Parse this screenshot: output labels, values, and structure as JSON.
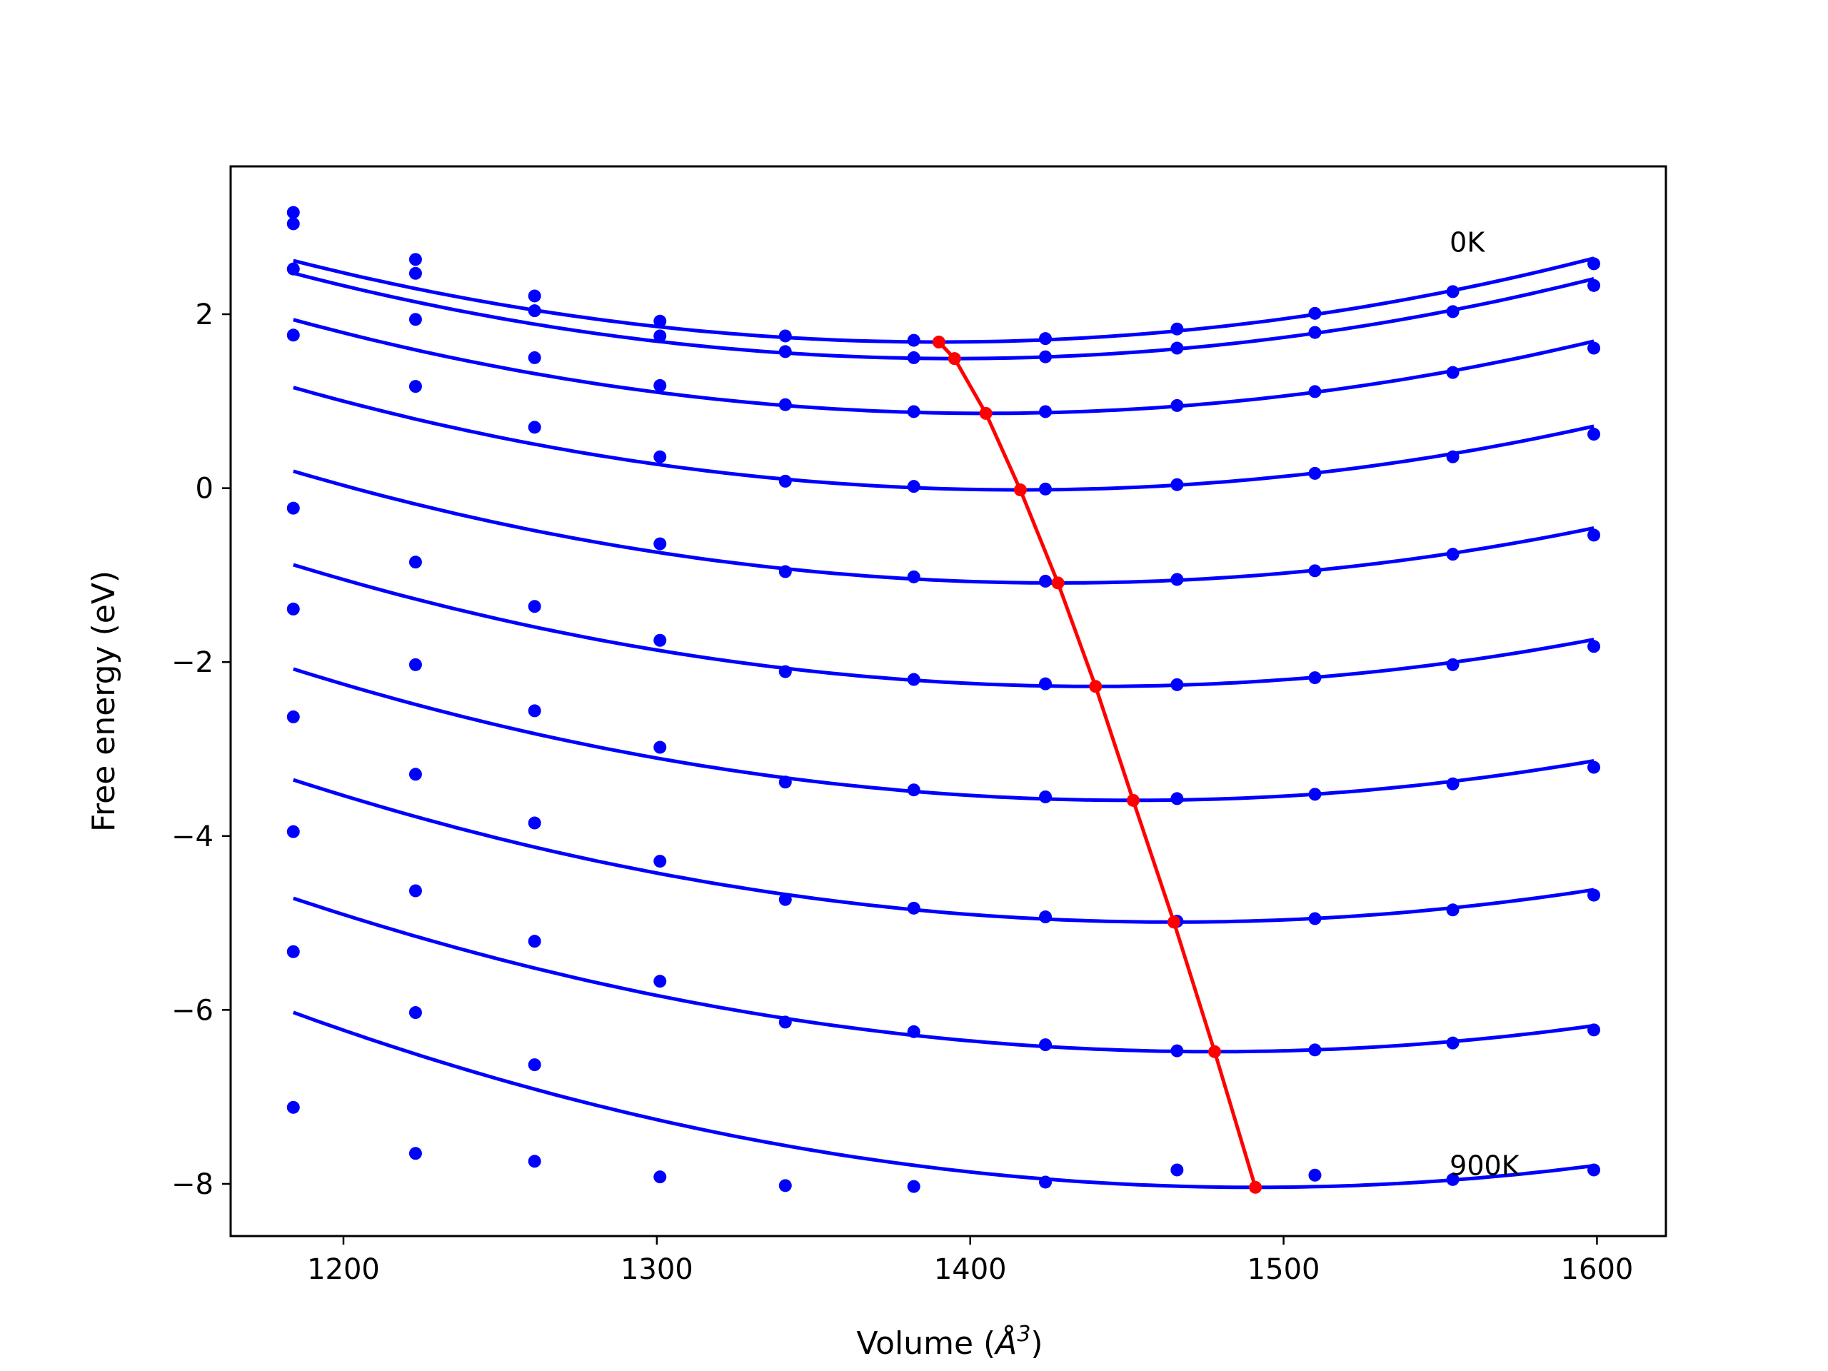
{
  "chart_data": {
    "type": "line",
    "title": "",
    "xlabel": "Volume (",
    "xlabel_sym": "Å",
    "xlabel_sup": "3",
    "xlabel_end": ")",
    "ylabel": "Free energy (eV)",
    "xlim": [
      1164,
      1622
    ],
    "ylim": [
      -8.6,
      3.7
    ],
    "xticks": [
      1200,
      1300,
      1400,
      1500,
      1600
    ],
    "xtick_labels": [
      "1200",
      "1300",
      "1400",
      "1500",
      "1600"
    ],
    "yticks": [
      2,
      0,
      -2,
      -4,
      -6,
      -8
    ],
    "ytick_labels": [
      "2",
      "0",
      "−2",
      "−4",
      "−6",
      "−8"
    ],
    "x": [
      1184,
      1223,
      1261,
      1301,
      1341,
      1382,
      1424,
      1466,
      1510,
      1554,
      1599
    ],
    "colors": {
      "series": "#0000ff",
      "minimum": "#ff0000"
    },
    "series": [
      {
        "values": [
          3.17,
          2.63,
          2.21,
          1.92,
          1.75,
          1.7,
          1.72,
          1.83,
          2.01,
          2.26,
          2.58
        ],
        "fit": {
          "a": 2.205e-05,
          "vmin": 1390,
          "fmin": 1.68
        }
      },
      {
        "values": [
          3.04,
          2.47,
          2.04,
          1.75,
          1.57,
          1.5,
          1.51,
          1.61,
          1.79,
          2.03,
          2.33
        ],
        "fit": {
          "a": 2.205e-05,
          "vmin": 1395,
          "fmin": 1.49
        }
      },
      {
        "values": [
          2.52,
          1.94,
          1.5,
          1.18,
          0.96,
          0.88,
          0.88,
          0.95,
          1.11,
          1.33,
          1.61
        ],
        "fit": {
          "a": 2.205e-05,
          "vmin": 1405,
          "fmin": 0.86
        }
      },
      {
        "values": [
          1.76,
          1.17,
          0.7,
          0.36,
          0.08,
          0.02,
          -0.01,
          0.04,
          0.17,
          0.36,
          0.62
        ],
        "fit": {
          "a": 2.187e-05,
          "vmin": 1416,
          "fmin": -0.02
        }
      },
      {
        "values": [
          -0.23,
          -0.85,
          -1.36,
          -0.64,
          -0.96,
          -1.02,
          -1.07,
          -1.05,
          -0.95,
          -0.76,
          -0.54
        ],
        "fit": {
          "a": 2.158e-05,
          "vmin": 1428,
          "fmin": -1.09
        }
      },
      {
        "values": [
          -1.39,
          -2.03,
          -2.56,
          -1.75,
          -2.11,
          -2.2,
          -2.25,
          -2.26,
          -2.18,
          -2.03,
          -1.82
        ],
        "fit": {
          "a": 2.134e-05,
          "vmin": 1440,
          "fmin": -2.28
        }
      },
      {
        "values": [
          -2.63,
          -3.29,
          -3.85,
          -2.98,
          -3.38,
          -3.47,
          -3.55,
          -3.57,
          -3.52,
          -3.4,
          -3.21
        ],
        "fit": {
          "a": 2.103e-05,
          "vmin": 1452,
          "fmin": -3.59
        }
      },
      {
        "values": [
          -3.95,
          -4.63,
          -5.21,
          -4.29,
          -4.73,
          -4.83,
          -4.93,
          -4.98,
          -4.95,
          -4.85,
          -4.68
        ],
        "fit": {
          "a": 2.072e-05,
          "vmin": 1465,
          "fmin": -4.99
        }
      },
      {
        "values": [
          -5.33,
          -6.03,
          -6.63,
          -5.67,
          -6.14,
          -6.25,
          -6.4,
          -6.47,
          -6.46,
          -6.38,
          -6.23
        ],
        "fit": {
          "a": 2.041e-05,
          "vmin": 1478,
          "fmin": -6.48
        }
      },
      {
        "values": [
          -7.12,
          -7.65,
          -7.74,
          -7.92,
          -8.02,
          -8.03,
          -7.98,
          -7.84,
          -7.9,
          -7.95,
          -7.84
        ],
        "fit": {
          "a": 2.134e-05,
          "vmin": 1491,
          "fmin": -8.04
        }
      }
    ],
    "minimum_line": {
      "x": [
        1390,
        1395,
        1405,
        1416,
        1428,
        1440,
        1452,
        1465,
        1478,
        1491
      ],
      "y": [
        1.68,
        1.49,
        0.86,
        -0.02,
        -1.09,
        -2.28,
        -3.59,
        -4.99,
        -6.48,
        -8.04
      ]
    },
    "annotations": [
      {
        "text": "0K",
        "x": 1553,
        "y": 2.72
      },
      {
        "text": "900K",
        "x": 1553,
        "y": -7.9
      }
    ]
  }
}
